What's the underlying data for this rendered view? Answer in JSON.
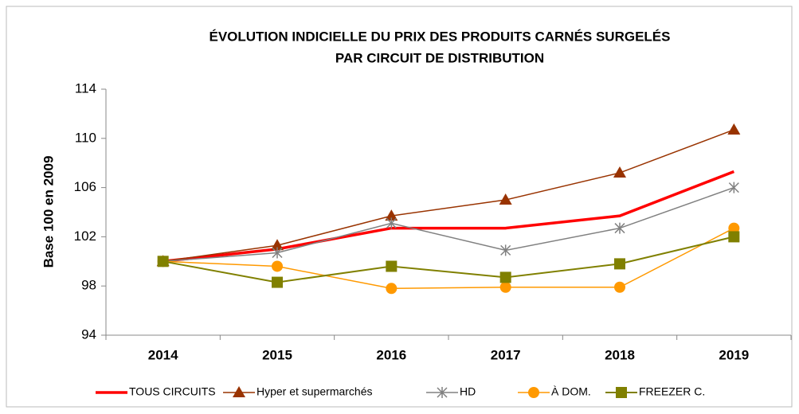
{
  "chart_data": {
    "type": "line",
    "title": [
      "ÉVOLUTION INDICIELLE DU PRIX DES PRODUITS CARNÉS SURGELÉS",
      "PAR CIRCUIT DE DISTRIBUTION"
    ],
    "ylabel": "Base 100 en 2009",
    "categories": [
      "2014",
      "2015",
      "2016",
      "2017",
      "2018",
      "2019"
    ],
    "ylim": [
      94,
      114
    ],
    "yticks": [
      94,
      98,
      102,
      106,
      110,
      114
    ],
    "grid": false,
    "legend": "bottom",
    "series": [
      {
        "name": "TOUS CIRCUITS",
        "color": "#ff0000",
        "marker": "none",
        "linewidth": 3.5,
        "values": [
          100,
          101.0,
          102.7,
          102.7,
          103.7,
          107.3
        ]
      },
      {
        "name": "Hyper et supermarchés",
        "color": "#993300",
        "marker": "triangle",
        "linewidth": 1.5,
        "values": [
          100,
          101.3,
          103.7,
          105.0,
          107.2,
          110.7
        ]
      },
      {
        "name": "HD",
        "color": "#808080",
        "marker": "asterisk",
        "linewidth": 1.5,
        "values": [
          100,
          100.7,
          103.1,
          100.9,
          102.7,
          106.0
        ]
      },
      {
        "name": "À DOM.",
        "color": "#ff9900",
        "marker": "circle",
        "linewidth": 1.5,
        "values": [
          100,
          99.6,
          97.8,
          97.9,
          97.9,
          102.7
        ]
      },
      {
        "name": "FREEZER C.",
        "color": "#808000",
        "marker": "square",
        "linewidth": 2,
        "values": [
          100,
          98.3,
          99.6,
          98.7,
          99.8,
          102.0
        ]
      }
    ]
  }
}
